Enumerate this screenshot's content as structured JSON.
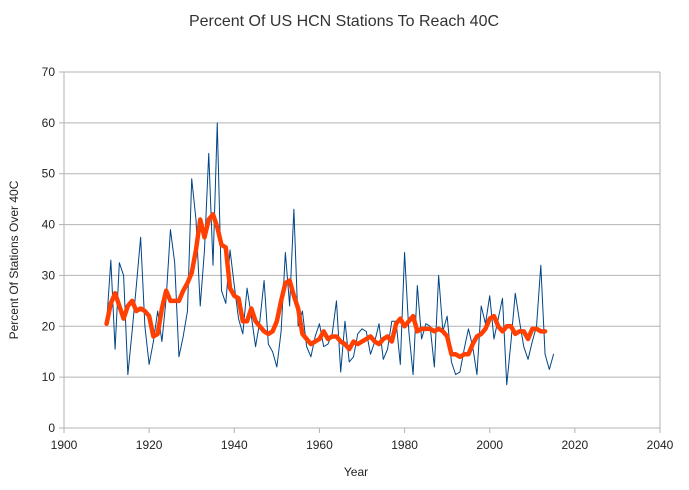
{
  "chart_data": {
    "type": "line",
    "title": "Percent Of US HCN Stations To Reach 40C",
    "xlabel": "Year",
    "ylabel": "Percent Of Stations Over 40C",
    "xlim": [
      1900,
      2040
    ],
    "ylim": [
      0,
      70
    ],
    "x_ticks": [
      "1900",
      "1920",
      "1940",
      "1960",
      "1980",
      "2000",
      "2020",
      "2040"
    ],
    "y_ticks": [
      "0",
      "10",
      "20",
      "30",
      "40",
      "50",
      "60",
      "70"
    ],
    "grid": "horizontal",
    "series": [
      {
        "color": "#004586",
        "x": [
          1910,
          1911,
          1912,
          1913,
          1914,
          1915,
          1916,
          1917,
          1918,
          1919,
          1920,
          1921,
          1922,
          1923,
          1924,
          1925,
          1926,
          1927,
          1928,
          1929,
          1930,
          1931,
          1932,
          1933,
          1934,
          1935,
          1936,
          1937,
          1938,
          1939,
          1940,
          1941,
          1942,
          1943,
          1944,
          1945,
          1946,
          1947,
          1948,
          1949,
          1950,
          1951,
          1952,
          1953,
          1954,
          1955,
          1956,
          1957,
          1958,
          1959,
          1960,
          1961,
          1962,
          1963,
          1964,
          1965,
          1966,
          1967,
          1968,
          1969,
          1970,
          1971,
          1972,
          1973,
          1974,
          1975,
          1976,
          1977,
          1978,
          1979,
          1980,
          1981,
          1982,
          1983,
          1984,
          1985,
          1986,
          1987,
          1988,
          1989,
          1990,
          1991,
          1992,
          1993,
          1994,
          1995,
          1996,
          1997,
          1998,
          1999,
          2000,
          2001,
          2002,
          2003,
          2004,
          2005,
          2006,
          2007,
          2008,
          2009,
          2010,
          2011,
          2012,
          2013,
          2014,
          2015
        ],
        "values": [
          20.5,
          33,
          15.5,
          32.5,
          30,
          10.5,
          19,
          28,
          37.5,
          20,
          12.5,
          17,
          23,
          17,
          25.5,
          39,
          32.5,
          14,
          18,
          23,
          49,
          41,
          24,
          35,
          54,
          32,
          60,
          27,
          24.5,
          35,
          28,
          21.5,
          18.5,
          27.5,
          22,
          16,
          21,
          29,
          16.5,
          15,
          12,
          19,
          34.5,
          24,
          43,
          20,
          23,
          16,
          14,
          18,
          20.5,
          16,
          16.5,
          18.5,
          25,
          11,
          21,
          13,
          14,
          18.5,
          19.5,
          19,
          14.5,
          17,
          20.5,
          13.5,
          15.5,
          21,
          21,
          12.5,
          34.5,
          19,
          10.5,
          28,
          17.5,
          20.5,
          20,
          12,
          30,
          19,
          22,
          13,
          10.5,
          11,
          15.5,
          19.5,
          16,
          10.5,
          24,
          20.5,
          26,
          17.5,
          21.5,
          25.5,
          8.5,
          17,
          26.5,
          21,
          16,
          13.5,
          17,
          20,
          32,
          14.5,
          11.5,
          14.5
        ]
      },
      {
        "color": "#ff4000",
        "x": [
          1910,
          1911,
          1912,
          1913,
          1914,
          1915,
          1916,
          1917,
          1918,
          1919,
          1920,
          1921,
          1922,
          1923,
          1924,
          1925,
          1926,
          1927,
          1928,
          1929,
          1930,
          1931,
          1932,
          1933,
          1934,
          1935,
          1936,
          1937,
          1938,
          1939,
          1940,
          1941,
          1942,
          1943,
          1944,
          1945,
          1946,
          1947,
          1948,
          1949,
          1950,
          1951,
          1952,
          1953,
          1954,
          1955,
          1956,
          1957,
          1958,
          1959,
          1960,
          1961,
          1962,
          1963,
          1964,
          1965,
          1966,
          1967,
          1968,
          1969,
          1970,
          1971,
          1972,
          1973,
          1974,
          1975,
          1976,
          1977,
          1978,
          1979,
          1980,
          1981,
          1982,
          1983,
          1984,
          1985,
          1986,
          1987,
          1988,
          1989,
          1990,
          1991,
          1992,
          1993,
          1994,
          1995,
          1996,
          1997,
          1998,
          1999,
          2000,
          2001,
          2002,
          2003,
          2004,
          2005,
          2006,
          2007,
          2008,
          2009,
          2010,
          2011,
          2012,
          2013
        ],
        "values": [
          20.5,
          24.5,
          26.5,
          24,
          21.5,
          24,
          25,
          23,
          23.5,
          23,
          22,
          18,
          18.5,
          23.5,
          27,
          25,
          25,
          25,
          27,
          28.5,
          30.5,
          35,
          41,
          37.5,
          41,
          42,
          39.5,
          36,
          35.5,
          27.5,
          26,
          25.5,
          21,
          21,
          23.5,
          21,
          20,
          19,
          18.5,
          19,
          21,
          25,
          28.5,
          29,
          26,
          23.5,
          18.5,
          17.5,
          16.5,
          17,
          17.5,
          19,
          17.5,
          18,
          18,
          17,
          16.5,
          15.5,
          17,
          16.5,
          17,
          17.5,
          18,
          17,
          16.5,
          17.5,
          18,
          17,
          20.5,
          21.5,
          20,
          21,
          22,
          19,
          19.5,
          19.5,
          19.5,
          19,
          19.5,
          19,
          18,
          14.5,
          14.5,
          14,
          14.5,
          14.5,
          16.5,
          18,
          18.5,
          19.5,
          21.5,
          22,
          20,
          19,
          20,
          20,
          18.5,
          19,
          19,
          17.5,
          19.5,
          19.5,
          19,
          19
        ]
      }
    ]
  }
}
